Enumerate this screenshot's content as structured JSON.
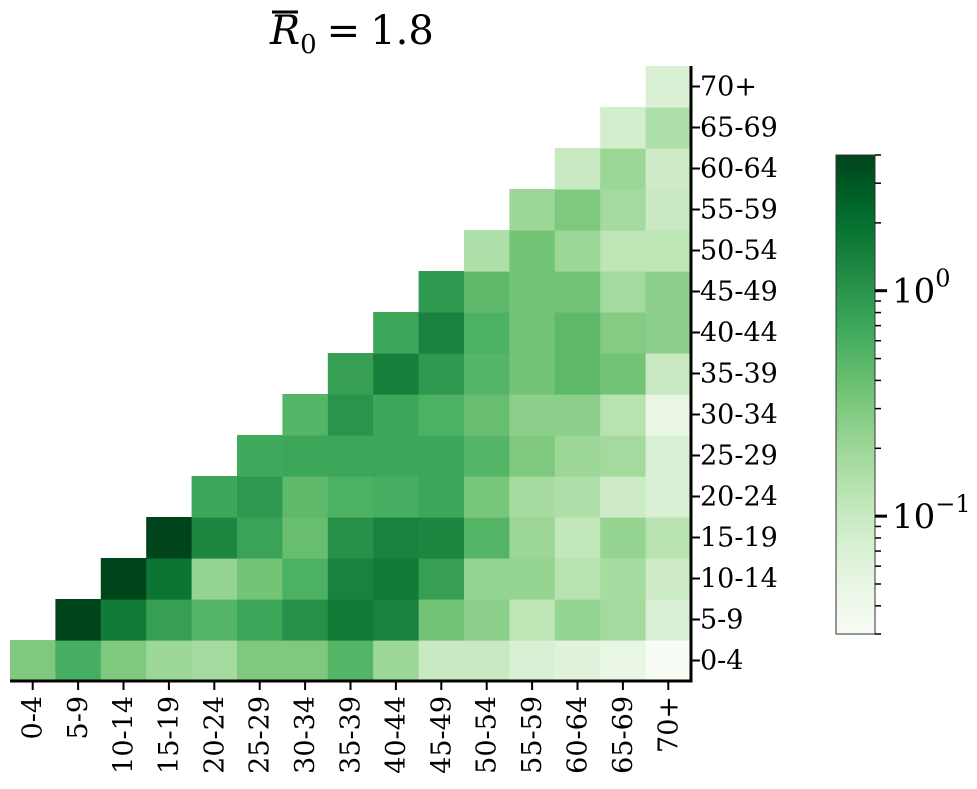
{
  "chart_data": {
    "type": "heatmap",
    "title": "R̄₀ = 1.8",
    "title_parts": {
      "symbol": "R",
      "subscript": "0",
      "equals": "=",
      "value": "1.8"
    },
    "xlabel": "",
    "ylabel": "",
    "categories": [
      "0-4",
      "5-9",
      "10-14",
      "15-19",
      "20-24",
      "25-29",
      "30-34",
      "35-39",
      "40-44",
      "45-49",
      "50-54",
      "55-59",
      "60-64",
      "65-69",
      "70+"
    ],
    "color_scale": "log",
    "colormap": "Greens",
    "vmin": 0.03,
    "vmax": 4.0,
    "colorbar": {
      "ticks": [
        1,
        0.1
      ],
      "tick_labels": [
        {
          "base": "10",
          "exp": "0"
        },
        {
          "base": "10",
          "exp": "−1"
        }
      ]
    },
    "values": [
      [
        0.3,
        0.6,
        0.3,
        0.2,
        0.18,
        0.3,
        0.3,
        0.5,
        0.2,
        0.1,
        0.1,
        0.07,
        0.06,
        0.05,
        0.03
      ],
      [
        null,
        4.0,
        1.6,
        0.8,
        0.5,
        0.7,
        1.1,
        1.6,
        1.4,
        0.35,
        0.25,
        0.12,
        0.22,
        0.18,
        0.07
      ],
      [
        null,
        null,
        4.0,
        1.8,
        0.22,
        0.35,
        0.55,
        1.4,
        1.6,
        0.8,
        0.22,
        0.22,
        0.13,
        0.17,
        0.09
      ],
      [
        null,
        null,
        null,
        4.0,
        1.3,
        0.75,
        0.4,
        1.1,
        1.4,
        1.3,
        0.5,
        0.2,
        0.11,
        0.22,
        0.13
      ],
      [
        null,
        null,
        null,
        null,
        0.7,
        0.9,
        0.45,
        0.55,
        0.6,
        0.7,
        0.33,
        0.17,
        0.15,
        0.09,
        0.07
      ],
      [
        null,
        null,
        null,
        null,
        null,
        0.65,
        0.7,
        0.7,
        0.7,
        0.7,
        0.5,
        0.3,
        0.2,
        0.18,
        0.07
      ],
      [
        null,
        null,
        null,
        null,
        null,
        null,
        0.5,
        1.0,
        0.7,
        0.55,
        0.4,
        0.25,
        0.25,
        0.13,
        0.05
      ],
      [
        null,
        null,
        null,
        null,
        null,
        null,
        null,
        0.8,
        1.5,
        0.9,
        0.5,
        0.35,
        0.45,
        0.35,
        0.1
      ],
      [
        null,
        null,
        null,
        null,
        null,
        null,
        null,
        null,
        0.7,
        1.4,
        0.55,
        0.35,
        0.45,
        0.28,
        0.25
      ],
      [
        null,
        null,
        null,
        null,
        null,
        null,
        null,
        null,
        null,
        0.9,
        0.45,
        0.35,
        0.35,
        0.18,
        0.25
      ],
      [
        null,
        null,
        null,
        null,
        null,
        null,
        null,
        null,
        null,
        null,
        0.15,
        0.35,
        0.2,
        0.12,
        0.12
      ],
      [
        null,
        null,
        null,
        null,
        null,
        null,
        null,
        null,
        null,
        null,
        null,
        0.2,
        0.3,
        0.18,
        0.1
      ],
      [
        null,
        null,
        null,
        null,
        null,
        null,
        null,
        null,
        null,
        null,
        null,
        null,
        0.1,
        0.2,
        0.09
      ],
      [
        null,
        null,
        null,
        null,
        null,
        null,
        null,
        null,
        null,
        null,
        null,
        null,
        null,
        0.08,
        0.15
      ],
      [
        null,
        null,
        null,
        null,
        null,
        null,
        null,
        null,
        null,
        null,
        null,
        null,
        null,
        null,
        0.07
      ]
    ],
    "grid": false,
    "legend": "colorbar-right"
  }
}
